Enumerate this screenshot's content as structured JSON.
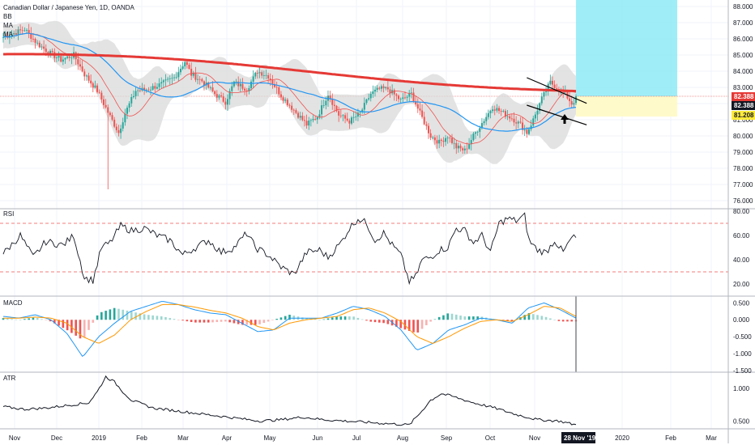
{
  "title": "Canadian Dollar / Japanese Yen, 1D, OANDA",
  "panes": {
    "price": {
      "studies": [
        "BB",
        "MA",
        "MA"
      ]
    },
    "rsi": {
      "label": "RSI"
    },
    "macd": {
      "label": "MACD"
    },
    "atr": {
      "label": "ATR"
    }
  },
  "price_tags": {
    "last": {
      "value": "82.388",
      "color": "#e53935"
    },
    "ma": {
      "value": "82.388",
      "color": "#131722"
    },
    "target": {
      "value": "81.208",
      "color": "#ffeb3b"
    }
  },
  "date_tag": "28 Nov '19",
  "colors": {
    "up": "#26a69a",
    "down": "#ef5350",
    "ma200": "#e53935",
    "ma50": "#2196f3",
    "ma20": "#ef5350",
    "bb_fill": "#d9d9d9",
    "macd_line": "#2196f3",
    "signal_line": "#ff9800",
    "hist_up": "#26a69a",
    "hist_down": "#ef5350",
    "zone_blue": "#7fe8f4",
    "zone_yellow": "#fff9c4"
  },
  "annotation": {
    "icon": "arrow-up-icon",
    "pattern": "falling wedge / descending channel"
  },
  "chart_data": [
    {
      "type": "candlestick",
      "pane": "price",
      "y_ticks": [
        "88.000",
        "87.000",
        "86.000",
        "85.000",
        "84.000",
        "83.000",
        "82.000",
        "81.000",
        "80.000",
        "79.000",
        "78.000",
        "77.000",
        "76.000"
      ],
      "x_ticks": [
        "Nov",
        "Dec",
        "2019",
        "Feb",
        "Mar",
        "Apr",
        "May",
        "Jun",
        "Jul",
        "Aug",
        "Sep",
        "Oct",
        "Nov",
        "2020",
        "Feb",
        "Mar"
      ],
      "ylim": [
        75.5,
        88.3
      ],
      "close_anchors": [
        [
          0,
          86.1
        ],
        [
          10,
          86.6
        ],
        [
          16,
          85.7
        ],
        [
          22,
          85.1
        ],
        [
          27,
          84.7
        ],
        [
          33,
          85.0
        ],
        [
          38,
          83.8
        ],
        [
          44,
          82.8
        ],
        [
          50,
          81.2
        ],
        [
          54,
          80.2
        ],
        [
          57,
          81.4
        ],
        [
          62,
          82.8
        ],
        [
          68,
          82.9
        ],
        [
          74,
          83.2
        ],
        [
          80,
          83.6
        ],
        [
          85,
          84.6
        ],
        [
          88,
          83.8
        ],
        [
          93,
          83.4
        ],
        [
          99,
          82.6
        ],
        [
          104,
          82.1
        ],
        [
          108,
          83.3
        ],
        [
          114,
          82.9
        ],
        [
          119,
          84.0
        ],
        [
          124,
          83.7
        ],
        [
          130,
          82.5
        ],
        [
          136,
          81.6
        ],
        [
          142,
          80.7
        ],
        [
          147,
          81.2
        ],
        [
          152,
          82.6
        ],
        [
          157,
          81.3
        ],
        [
          162,
          80.9
        ],
        [
          167,
          81.4
        ],
        [
          172,
          82.6
        ],
        [
          176,
          82.9
        ],
        [
          180,
          82.9
        ],
        [
          186,
          82.2
        ],
        [
          191,
          82.6
        ],
        [
          195,
          81.4
        ],
        [
          200,
          80.0
        ],
        [
          204,
          79.6
        ],
        [
          208,
          80.0
        ],
        [
          212,
          79.3
        ],
        [
          216,
          79.1
        ],
        [
          220,
          80.0
        ],
        [
          224,
          80.8
        ],
        [
          229,
          81.8
        ],
        [
          234,
          81.4
        ],
        [
          238,
          81.1
        ],
        [
          242,
          80.7
        ],
        [
          245,
          80.2
        ],
        [
          248,
          81.0
        ],
        [
          252,
          82.3
        ],
        [
          256,
          83.3
        ],
        [
          259,
          83.0
        ],
        [
          263,
          82.6
        ],
        [
          266,
          82.0
        ],
        [
          268,
          82.3
        ]
      ],
      "wedge": {
        "upper": [
          [
            245,
            83.6
          ],
          [
            268,
            82.3
          ]
        ],
        "lower": [
          [
            245,
            81.9
          ],
          [
            268,
            80.9
          ]
        ]
      }
    },
    {
      "type": "line",
      "pane": "rsi",
      "y_ticks": [
        "80.00",
        "60.00",
        "40.00",
        "20.00"
      ],
      "ylim": [
        10,
        82
      ],
      "levels": [
        70,
        30
      ],
      "anchors": [
        [
          0,
          45
        ],
        [
          8,
          60
        ],
        [
          14,
          42
        ],
        [
          20,
          55
        ],
        [
          28,
          52
        ],
        [
          33,
          60
        ],
        [
          38,
          25
        ],
        [
          42,
          23
        ],
        [
          46,
          50
        ],
        [
          50,
          54
        ],
        [
          55,
          68
        ],
        [
          60,
          64
        ],
        [
          66,
          66
        ],
        [
          72,
          60
        ],
        [
          78,
          56
        ],
        [
          84,
          44
        ],
        [
          90,
          50
        ],
        [
          96,
          56
        ],
        [
          102,
          46
        ],
        [
          108,
          50
        ],
        [
          114,
          62
        ],
        [
          118,
          50
        ],
        [
          124,
          44
        ],
        [
          130,
          34
        ],
        [
          136,
          28
        ],
        [
          142,
          46
        ],
        [
          148,
          48
        ],
        [
          152,
          42
        ],
        [
          158,
          54
        ],
        [
          162,
          66
        ],
        [
          166,
          74
        ],
        [
          170,
          70
        ],
        [
          174,
          56
        ],
        [
          178,
          62
        ],
        [
          182,
          52
        ],
        [
          186,
          44
        ],
        [
          190,
          22
        ],
        [
          193,
          26
        ],
        [
          196,
          40
        ],
        [
          200,
          42
        ],
        [
          204,
          48
        ],
        [
          208,
          50
        ],
        [
          212,
          66
        ],
        [
          216,
          64
        ],
        [
          220,
          54
        ],
        [
          224,
          60
        ],
        [
          228,
          46
        ],
        [
          232,
          70
        ],
        [
          236,
          74
        ],
        [
          240,
          72
        ],
        [
          244,
          76
        ],
        [
          246,
          56
        ],
        [
          250,
          48
        ],
        [
          254,
          46
        ],
        [
          258,
          56
        ],
        [
          262,
          46
        ],
        [
          266,
          58
        ]
      ]
    },
    {
      "type": "line",
      "pane": "macd",
      "series": [
        {
          "name": "MACD",
          "values": [
            0.1,
            0.05,
            0.15,
            0.0,
            -0.4,
            -1.1,
            -0.5,
            -0.1,
            0.25,
            0.4,
            0.55,
            0.45,
            0.3,
            0.2,
            0.15,
            -0.1,
            -0.35,
            -0.3,
            0.05,
            0.05,
            0.05,
            0.2,
            0.4,
            0.3,
            0.1,
            -0.3,
            -0.9,
            -0.7,
            -0.3,
            -0.15,
            0.05,
            0.0,
            -0.1,
            0.35,
            0.5,
            0.3,
            0.05
          ]
        },
        {
          "name": "Signal",
          "values": [
            0.05,
            0.05,
            0.08,
            0.05,
            -0.1,
            -0.5,
            -0.7,
            -0.45,
            0.0,
            0.25,
            0.45,
            0.45,
            0.38,
            0.28,
            0.2,
            0.05,
            -0.2,
            -0.3,
            -0.1,
            0.0,
            0.05,
            0.1,
            0.3,
            0.35,
            0.2,
            -0.05,
            -0.5,
            -0.7,
            -0.5,
            -0.25,
            -0.05,
            0.0,
            -0.05,
            0.15,
            0.4,
            0.35,
            0.1
          ]
        }
      ],
      "y_ticks": [
        "0.500",
        "0.000",
        "-0.500",
        "-1.000",
        "-1.500"
      ],
      "ylim": [
        -1.55,
        0.7
      ]
    },
    {
      "type": "line",
      "pane": "atr",
      "y_ticks": [
        "1.000",
        "0.500"
      ],
      "ylim": [
        0.38,
        1.25
      ],
      "anchors": [
        [
          0,
          0.72
        ],
        [
          10,
          0.68
        ],
        [
          20,
          0.7
        ],
        [
          30,
          0.74
        ],
        [
          40,
          0.78
        ],
        [
          44,
          0.95
        ],
        [
          48,
          1.18
        ],
        [
          52,
          1.1
        ],
        [
          56,
          0.95
        ],
        [
          60,
          0.82
        ],
        [
          70,
          0.7
        ],
        [
          80,
          0.66
        ],
        [
          90,
          0.62
        ],
        [
          100,
          0.58
        ],
        [
          110,
          0.54
        ],
        [
          120,
          0.5
        ],
        [
          130,
          0.52
        ],
        [
          140,
          0.56
        ],
        [
          150,
          0.52
        ],
        [
          160,
          0.5
        ],
        [
          170,
          0.48
        ],
        [
          180,
          0.46
        ],
        [
          190,
          0.44
        ],
        [
          195,
          0.62
        ],
        [
          200,
          0.82
        ],
        [
          205,
          0.92
        ],
        [
          210,
          0.88
        ],
        [
          220,
          0.78
        ],
        [
          230,
          0.7
        ],
        [
          240,
          0.6
        ],
        [
          250,
          0.52
        ],
        [
          260,
          0.5
        ],
        [
          268,
          0.44
        ]
      ]
    }
  ]
}
